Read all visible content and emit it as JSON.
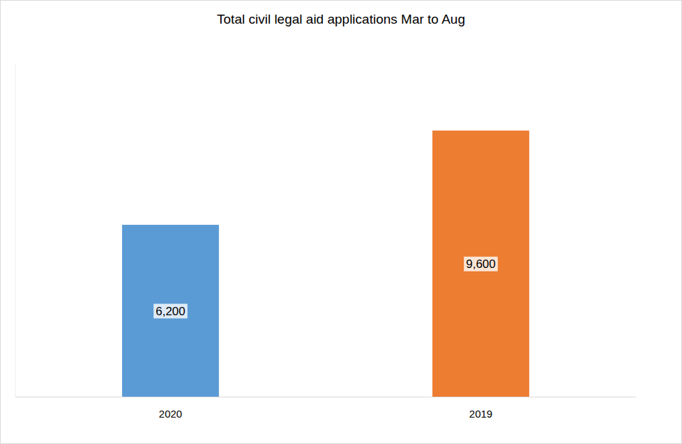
{
  "chart_data": {
    "type": "bar",
    "title": "Total civil legal aid applications Mar to Aug",
    "categories": [
      "2020",
      "2019"
    ],
    "values": [
      6200,
      9600
    ],
    "value_labels": [
      "6,200",
      "9,600"
    ],
    "colors": [
      "#5b9bd5",
      "#ed7d31"
    ],
    "ylim": [
      0,
      12000
    ],
    "data_labels": true,
    "tick_labels": "x",
    "grid": false
  }
}
